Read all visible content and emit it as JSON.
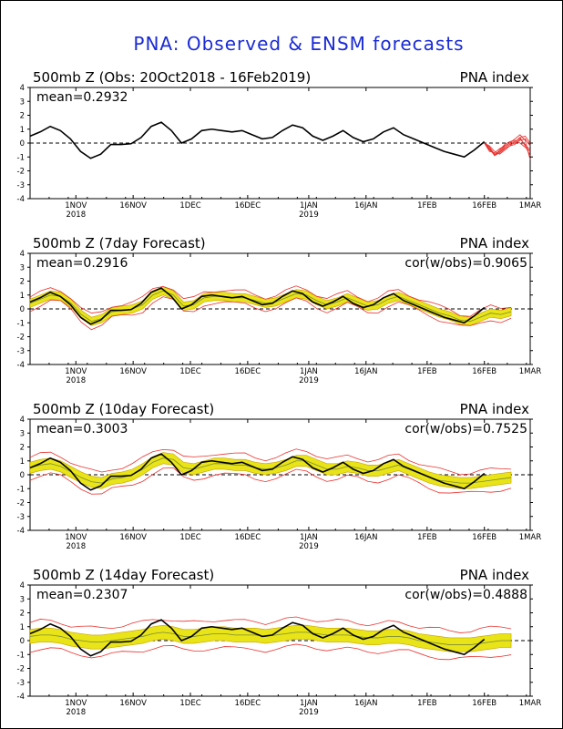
{
  "page_title": "PNA: Observed & ENSM forecasts",
  "colors": {
    "title": "#1a2bd6",
    "observed": "#000000",
    "forecast_members": "#e8322e",
    "spread_band": "#e8e417",
    "band_edge": "#c8a000"
  },
  "chart_data": [
    {
      "type": "line",
      "title": "500mb  Z  (Obs: 20Oct2018 - 16Feb2019)",
      "right_label": "PNA index",
      "mean_label": "mean=0.2932",
      "cor_label": "",
      "ylim": [
        -4,
        4
      ],
      "yticks": [
        "4",
        "3",
        "2",
        "1",
        "0",
        "-1",
        "-2",
        "-3",
        "-4"
      ],
      "xtick_labels": [
        "1NOV",
        "16NOV",
        "1DEC",
        "16DEC",
        "1JAN",
        "16JAN",
        "1FEB",
        "16FEB",
        "1MAR"
      ],
      "xtick_years": [
        "2018",
        "",
        "",
        "",
        "2019",
        "",
        "",
        "",
        ""
      ],
      "series_observed": [
        0.5,
        0.8,
        1.2,
        0.9,
        0.3,
        -0.6,
        -1.1,
        -0.8,
        -0.1,
        -0.1,
        -0.05,
        0.4,
        1.2,
        1.5,
        0.9,
        0.0,
        0.3,
        0.9,
        1.0,
        0.9,
        0.8,
        0.9,
        0.6,
        0.3,
        0.4,
        0.9,
        1.3,
        1.1,
        0.5,
        0.2,
        0.5,
        0.9,
        0.4,
        0.1,
        0.3,
        0.8,
        1.1,
        0.6,
        0.3,
        0.0,
        -0.3,
        -0.6,
        -0.8,
        -1.0,
        -0.5,
        0.1
      ],
      "forecast_members": [
        [
          0.0,
          -0.3,
          -0.8,
          -0.6,
          -0.2,
          0.0,
          0.1,
          0.4,
          -0.2,
          -0.9
        ],
        [
          0.0,
          -0.5,
          -0.8,
          -0.7,
          -0.3,
          -0.1,
          0.0,
          0.2,
          0.3,
          -0.2
        ],
        [
          0.0,
          -0.4,
          -0.9,
          -0.5,
          -0.1,
          0.1,
          0.2,
          0.0,
          -0.3,
          -0.6
        ],
        [
          0.0,
          -0.6,
          -0.7,
          -0.4,
          -0.2,
          0.0,
          0.3,
          0.6,
          0.2,
          -1.2
        ],
        [
          0.0,
          -0.2,
          -0.6,
          -0.8,
          -0.5,
          -0.2,
          0.1,
          0.4,
          0.5,
          0.0
        ],
        [
          0.0,
          -0.3,
          -0.9,
          -0.7,
          -0.4,
          -0.2,
          -0.1,
          0.3,
          -0.1,
          -0.5
        ]
      ]
    },
    {
      "type": "line",
      "title": "500mb  Z  (7day Forecast)",
      "right_label": "PNA index",
      "mean_label": "mean=0.2916",
      "cor_label": "cor(w/obs)=0.9065",
      "ylim": [
        -4,
        4
      ],
      "yticks": [
        "4",
        "3",
        "2",
        "1",
        "0",
        "-1",
        "-2",
        "-3",
        "-4"
      ],
      "xtick_labels": [
        "1NOV",
        "16NOV",
        "1DEC",
        "16DEC",
        "1JAN",
        "16JAN",
        "1FEB",
        "16FEB",
        "1MAR"
      ],
      "xtick_years": [
        "2018",
        "",
        "",
        "",
        "2019",
        "",
        "",
        "",
        ""
      ],
      "series_observed": [
        0.5,
        0.8,
        1.2,
        0.9,
        0.3,
        -0.6,
        -1.1,
        -0.8,
        -0.1,
        -0.1,
        -0.05,
        0.4,
        1.2,
        1.5,
        0.9,
        0.0,
        0.3,
        0.9,
        1.0,
        0.9,
        0.8,
        0.9,
        0.6,
        0.3,
        0.4,
        0.9,
        1.3,
        1.1,
        0.5,
        0.2,
        0.5,
        0.9,
        0.4,
        0.1,
        0.3,
        0.8,
        1.1,
        0.6,
        0.3,
        0.0,
        -0.3,
        -0.6,
        -0.8,
        -1.0,
        -0.5,
        0.1
      ],
      "series_forecast_mean": [
        0.4,
        0.7,
        1.0,
        0.9,
        0.4,
        -0.4,
        -0.9,
        -0.7,
        -0.2,
        -0.1,
        0.0,
        0.3,
        1.0,
        1.3,
        1.0,
        0.2,
        0.3,
        0.8,
        0.9,
        0.9,
        0.8,
        0.8,
        0.6,
        0.4,
        0.5,
        0.8,
        1.1,
        1.0,
        0.6,
        0.3,
        0.5,
        0.8,
        0.5,
        0.2,
        0.3,
        0.7,
        0.9,
        0.6,
        0.3,
        0.0,
        -0.3,
        -0.5,
        -0.8,
        -0.9,
        -0.6,
        -0.3,
        -0.4,
        -0.2
      ],
      "band_halfwidth": 0.3,
      "outer_halfwidth": 0.45
    },
    {
      "type": "line",
      "title": "500mb  Z  (10day Forecast)",
      "right_label": "PNA index",
      "mean_label": "mean=0.3003",
      "cor_label": "cor(w/obs)=0.7525",
      "ylim": [
        -4,
        4
      ],
      "yticks": [
        "4",
        "3",
        "2",
        "1",
        "0",
        "-1",
        "-2",
        "-3",
        "-4"
      ],
      "xtick_labels": [
        "1NOV",
        "16NOV",
        "1DEC",
        "16DEC",
        "1JAN",
        "16JAN",
        "1FEB",
        "16FEB",
        "1MAR"
      ],
      "xtick_years": [
        "2018",
        "",
        "",
        "",
        "2019",
        "",
        "",
        "",
        ""
      ],
      "series_observed": [
        0.5,
        0.8,
        1.2,
        0.9,
        0.3,
        -0.6,
        -1.1,
        -0.8,
        -0.1,
        -0.1,
        -0.05,
        0.4,
        1.2,
        1.5,
        0.9,
        0.0,
        0.3,
        0.9,
        1.0,
        0.9,
        0.8,
        0.9,
        0.6,
        0.3,
        0.4,
        0.9,
        1.3,
        1.1,
        0.5,
        0.2,
        0.5,
        0.9,
        0.4,
        0.1,
        0.3,
        0.8,
        1.1,
        0.6,
        0.3,
        0.0,
        -0.3,
        -0.6,
        -0.8,
        -1.0,
        -0.5,
        0.1
      ],
      "series_forecast_mean": [
        0.5,
        0.7,
        0.8,
        0.6,
        0.2,
        -0.2,
        -0.5,
        -0.6,
        -0.3,
        -0.2,
        0.0,
        0.4,
        0.9,
        1.2,
        1.1,
        0.5,
        0.4,
        0.6,
        0.8,
        0.8,
        0.7,
        0.7,
        0.5,
        0.4,
        0.5,
        0.7,
        1.0,
        1.0,
        0.7,
        0.4,
        0.4,
        0.6,
        0.5,
        0.3,
        0.3,
        0.5,
        0.7,
        0.4,
        0.1,
        -0.2,
        -0.4,
        -0.5,
        -0.6,
        -0.6,
        -0.5,
        -0.4,
        -0.3,
        -0.2
      ],
      "band_halfwidth": 0.4,
      "outer_halfwidth": 0.75
    },
    {
      "type": "line",
      "title": "500mb  Z  (14day Forecast)",
      "right_label": "PNA index",
      "mean_label": "mean=0.2307",
      "cor_label": "cor(w/obs)=0.4888",
      "ylim": [
        -4,
        4
      ],
      "yticks": [
        "4",
        "3",
        "2",
        "1",
        "0",
        "-1",
        "-2",
        "-3",
        "-4"
      ],
      "xtick_labels": [
        "1NOV",
        "16NOV",
        "1DEC",
        "16DEC",
        "1JAN",
        "16JAN",
        "1FEB",
        "16FEB",
        "1MAR"
      ],
      "xtick_years": [
        "2018",
        "",
        "",
        "",
        "2019",
        "",
        "",
        "",
        ""
      ],
      "series_observed": [
        0.5,
        0.8,
        1.2,
        0.9,
        0.3,
        -0.6,
        -1.1,
        -0.8,
        -0.1,
        -0.1,
        -0.05,
        0.4,
        1.2,
        1.5,
        0.9,
        0.0,
        0.3,
        0.9,
        1.0,
        0.9,
        0.8,
        0.9,
        0.6,
        0.3,
        0.4,
        0.9,
        1.3,
        1.1,
        0.5,
        0.2,
        0.5,
        0.9,
        0.4,
        0.1,
        0.3,
        0.8,
        1.1,
        0.6,
        0.3,
        0.0,
        -0.3,
        -0.6,
        -0.8,
        -1.0,
        -0.5,
        0.1
      ],
      "series_forecast_mean": [
        0.3,
        0.4,
        0.4,
        0.3,
        0.1,
        0.0,
        -0.1,
        -0.1,
        0.0,
        0.1,
        0.2,
        0.3,
        0.5,
        0.6,
        0.5,
        0.3,
        0.3,
        0.4,
        0.5,
        0.5,
        0.4,
        0.4,
        0.4,
        0.3,
        0.4,
        0.5,
        0.6,
        0.6,
        0.5,
        0.4,
        0.4,
        0.4,
        0.3,
        0.2,
        0.2,
        0.3,
        0.3,
        0.2,
        0.0,
        -0.1,
        -0.2,
        -0.3,
        -0.3,
        -0.3,
        -0.2,
        -0.1,
        0.0,
        0.0
      ],
      "band_halfwidth": 0.5,
      "outer_halfwidth": 1.0
    }
  ]
}
